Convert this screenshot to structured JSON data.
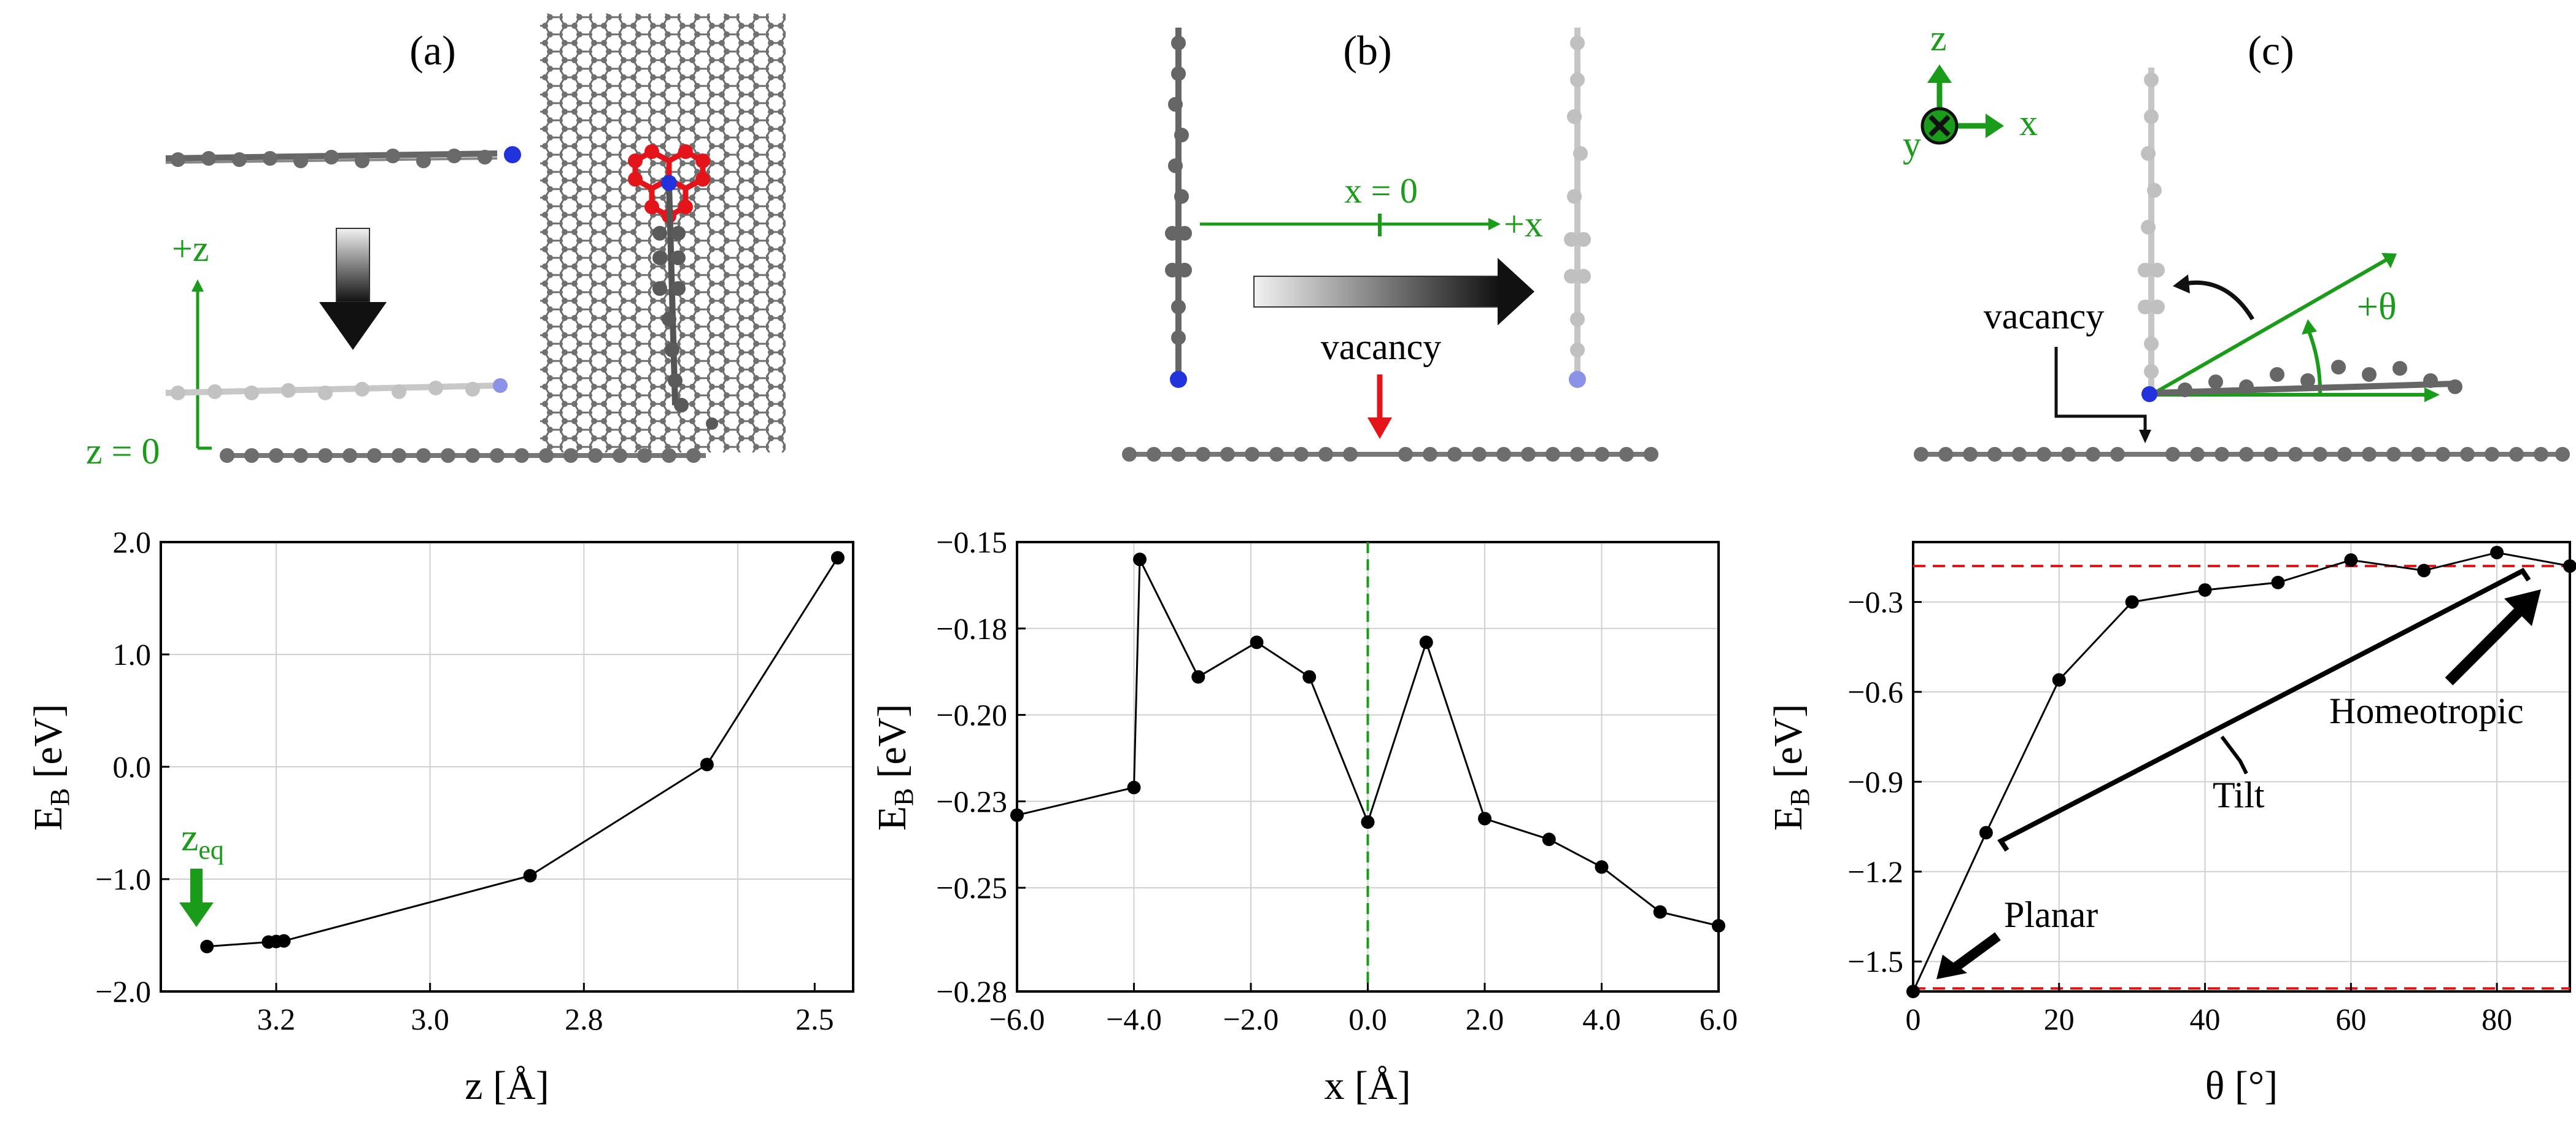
{
  "panels": {
    "a": {
      "label": "(a)",
      "axis_label": "+z",
      "origin_label": "z = 0"
    },
    "b": {
      "label": "(b)",
      "x_origin_label": "x = 0",
      "axis_label": "+x",
      "vacancy_label": "vacancy"
    },
    "c": {
      "label": "(c)",
      "z_label": "z",
      "x_label": "x",
      "y_label": "y",
      "theta_label": "+θ",
      "vacancy_label": "vacancy"
    }
  },
  "colors": {
    "green": "#1a9b1a",
    "red": "#e4141b",
    "black": "#000000",
    "grid": "#d0d0d0",
    "atom": "#6b6b6b"
  },
  "chart_data": [
    {
      "type": "line",
      "id": "a",
      "xlabel": "z [Å]",
      "ylabel_main": "E",
      "ylabel_sub": "B",
      "ylabel_unit": "[eV]",
      "x": [
        3.29,
        3.21,
        3.2,
        3.19,
        2.87,
        2.64,
        2.47
      ],
      "y": [
        -1.6,
        -1.56,
        -1.555,
        -1.55,
        -0.97,
        0.02,
        1.86
      ],
      "xlim": [
        3.35,
        2.45
      ],
      "ylim": [
        -2.0,
        2.0
      ],
      "xticks": [
        3.2,
        3.0,
        2.8,
        2.5
      ],
      "xtick_labels": [
        "3.2",
        "3.0",
        "2.8",
        "2.5"
      ],
      "yticks": [
        2.0,
        1.0,
        0.0,
        -1.0,
        -2.0
      ],
      "ytick_labels": [
        "2.0",
        "1.0",
        "0.0",
        "−1.0",
        "−2.0"
      ],
      "xgrid": [
        3.2,
        3.0,
        2.8,
        2.6
      ],
      "ygrid": [
        2.0,
        1.0,
        0.0,
        -1.0,
        -2.0
      ],
      "annotation": {
        "text_main": "z",
        "text_sub": "eq"
      }
    },
    {
      "type": "line",
      "id": "b",
      "xlabel": "x [Å]",
      "ylabel_main": "E",
      "ylabel_sub": "B",
      "ylabel_unit": "[eV]",
      "x": [
        -6.0,
        -4.0,
        -3.9,
        -2.9,
        -1.9,
        -1.0,
        0.0,
        1.0,
        2.0,
        3.1,
        4.0,
        5.0,
        6.0
      ],
      "y": [
        -0.229,
        -0.221,
        -0.155,
        -0.189,
        -0.179,
        -0.189,
        -0.231,
        -0.179,
        -0.23,
        -0.236,
        -0.244,
        -0.257,
        -0.261
      ],
      "xlim": [
        -6.0,
        6.0
      ],
      "ylim": [
        -0.28,
        -0.15
      ],
      "xticks": [
        -6,
        -4,
        -2,
        0,
        2,
        4,
        6
      ],
      "xtick_labels": [
        "−6.0",
        "−4.0",
        "−2.0",
        "0.0",
        "2.0",
        "4.0",
        "6.0"
      ],
      "yticks": [
        -0.15,
        -0.175,
        -0.2,
        -0.225,
        -0.25,
        -0.28
      ],
      "ytick_labels": [
        "−0.15",
        "−0.18",
        "−0.20",
        "−0.23",
        "−0.25",
        "−0.28"
      ],
      "vline": 0.0
    },
    {
      "type": "line",
      "id": "c",
      "xlabel": "θ [°]",
      "ylabel_main": "E",
      "ylabel_sub": "B",
      "ylabel_unit": "[eV]",
      "x": [
        0,
        10,
        20,
        30,
        40,
        50,
        60,
        70,
        80,
        90
      ],
      "y": [
        -1.6,
        -1.07,
        -0.56,
        -0.3,
        -0.26,
        -0.235,
        -0.16,
        -0.195,
        -0.135,
        -0.18
      ],
      "xlim": [
        0,
        90
      ],
      "ylim": [
        -1.6,
        -0.1
      ],
      "xticks": [
        0,
        20,
        40,
        60,
        80
      ],
      "xtick_labels": [
        "0",
        "20",
        "40",
        "60",
        "80"
      ],
      "yticks": [
        -0.3,
        -0.6,
        -0.9,
        -1.2,
        -1.5
      ],
      "ytick_labels": [
        "−0.3",
        "−0.6",
        "−0.9",
        "−1.2",
        "−1.5"
      ],
      "hlines": [
        -0.18,
        -1.59
      ],
      "annotations": [
        "Homeotropic",
        "Tilt",
        "Planar"
      ]
    }
  ]
}
